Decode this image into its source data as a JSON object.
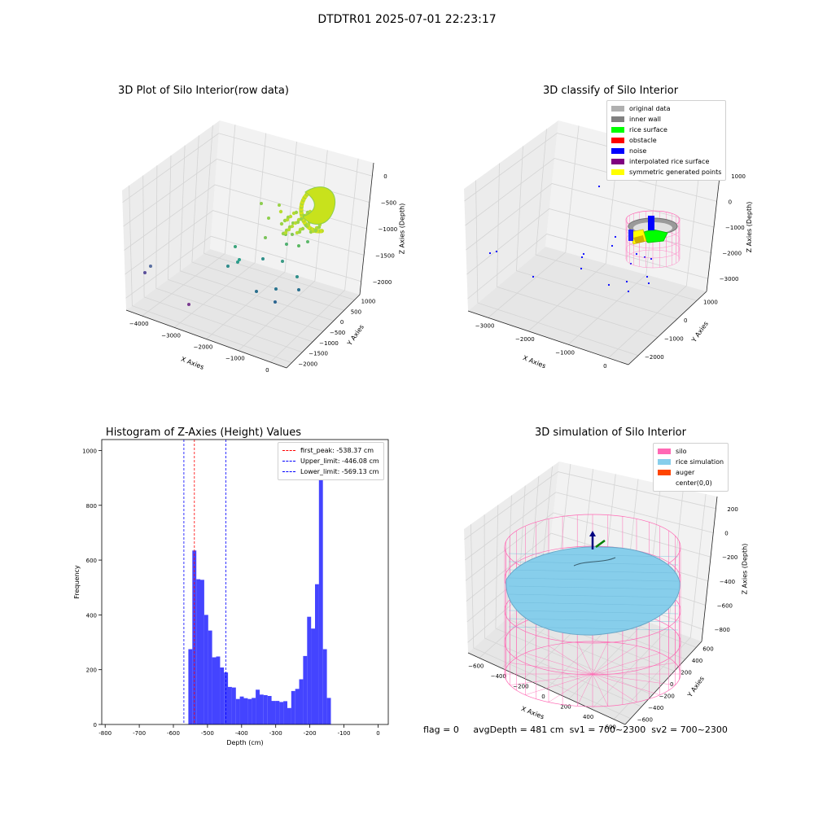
{
  "figure": {
    "title": "DTDTR01 2025-07-01 22:23:17",
    "status": {
      "flag": "flag = 0",
      "avg_depth": "avgDepth = 481 cm",
      "sv1": "sv1 = 700~2300",
      "sv2": "sv2 = 700~2300"
    }
  },
  "chart_data": [
    {
      "id": "raw",
      "type": "scatter",
      "title": "3D Plot of Silo Interior(row data)",
      "xlabel": "X Axies",
      "ylabel": "Y Axies",
      "zlabel": "Z Axies (Depth)",
      "x_ticks": [
        "−4000",
        "−3000",
        "−2000",
        "−1000",
        "0"
      ],
      "y_ticks": [
        "−2000",
        "−1500",
        "−1000",
        "−500",
        "0",
        "500",
        "1000"
      ],
      "z_ticks": [
        "0",
        "−500",
        "−1000",
        "−1500",
        "−2000"
      ],
      "xlim": [
        -4000,
        0
      ],
      "ylim": [
        -2000,
        1000
      ],
      "zlim": [
        -2000,
        0
      ],
      "grid": true,
      "colormap": "viridis"
    },
    {
      "id": "classify",
      "type": "scatter",
      "title": "3D classify of Silo Interior",
      "xlabel": "X Axies",
      "ylabel": "Y Axies",
      "zlabel": "Z Axies (Depth)",
      "x_ticks": [
        "−3000",
        "−2000",
        "−1000",
        "0"
      ],
      "y_ticks": [
        "−2000",
        "−1000",
        "0",
        "1000"
      ],
      "z_ticks": [
        "1000",
        "0",
        "−1000",
        "−2000",
        "−3000"
      ],
      "xlim": [
        -3000,
        0
      ],
      "ylim": [
        -2000,
        1000
      ],
      "zlim": [
        -3000,
        1000
      ],
      "grid": true,
      "legend_position": "top-right",
      "legend": [
        {
          "label": "original data",
          "color": "#b0b0b0"
        },
        {
          "label": "inner wall",
          "color": "#808080"
        },
        {
          "label": "rice surface",
          "color": "#00ff00"
        },
        {
          "label": "obstacle",
          "color": "#ff0000"
        },
        {
          "label": "noise",
          "color": "#0000ff"
        },
        {
          "label": "interpolated rice surface",
          "color": "#800080"
        },
        {
          "label": "symmetric generated points",
          "color": "#ffff00"
        }
      ]
    },
    {
      "id": "hist",
      "type": "bar",
      "title": "Histogram of Z-Axies (Height) Values",
      "xlabel": "Depth (cm)",
      "ylabel": "Frequency",
      "xlim": [
        -810,
        30
      ],
      "ylim": [
        0,
        1040
      ],
      "x_ticks": [
        -800,
        -700,
        -600,
        -500,
        -400,
        -300,
        -200,
        -100,
        0
      ],
      "y_ticks": [
        0,
        200,
        400,
        600,
        800,
        1000
      ],
      "bar_color": "#4444ff",
      "bin_start": -556,
      "bin_width": 11.6,
      "values": [
        275,
        635,
        530,
        528,
        400,
        343,
        245,
        248,
        208,
        190,
        137,
        135,
        93,
        102,
        96,
        93,
        97,
        127,
        109,
        107,
        104,
        86,
        86,
        82,
        85,
        60,
        122,
        130,
        165,
        250,
        393,
        350,
        512,
        990,
        275,
        97
      ],
      "vlines": [
        {
          "x": -538.37,
          "color": "#ff0000",
          "label": "first_peak: -538.37 cm"
        },
        {
          "x": -446.08,
          "color": "#0000ff",
          "label": "Upper_limit: -446.08 cm"
        },
        {
          "x": -569.13,
          "color": "#0000ff",
          "label": "Lower_limit: -569.13 cm"
        }
      ],
      "legend_position": "top-right"
    },
    {
      "id": "sim",
      "type": "surface",
      "title": "3D simulation of Silo Interior",
      "xlabel": "X Axies",
      "ylabel": "Y Axies",
      "zlabel": "Z Axies (Depth)",
      "x_ticks": [
        "−600",
        "−400",
        "−200",
        "0",
        "200",
        "400",
        "600"
      ],
      "y_ticks": [
        "−600",
        "−400",
        "−200",
        "0",
        "200",
        "400",
        "600"
      ],
      "z_ticks": [
        "200",
        "0",
        "−200",
        "−400",
        "−600",
        "−800"
      ],
      "xlim": [
        -600,
        600
      ],
      "ylim": [
        -600,
        600
      ],
      "zlim": [
        -800,
        200
      ],
      "grid": true,
      "legend_position": "top-right",
      "legend": [
        {
          "label": "silo",
          "color": "#ff69b4"
        },
        {
          "label": "rice simulation",
          "color": "#87ceeb"
        },
        {
          "label": "auger",
          "color": "#ff4500"
        },
        {
          "label": "center(0,0)",
          "color": ""
        }
      ]
    }
  ]
}
